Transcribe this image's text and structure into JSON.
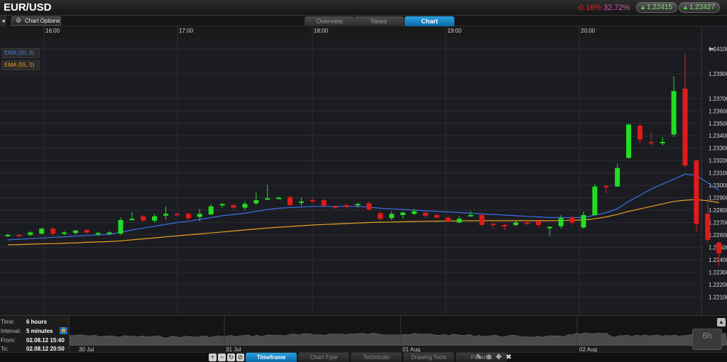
{
  "header": {
    "pair": "EUR/USD",
    "change_pct": "-0.16%",
    "other_pct": "32.72%",
    "bid": "1.22415",
    "ask": "1.22427"
  },
  "toolrow": {
    "chart_options_label": "Chart Options",
    "tabs": [
      {
        "label": "Overview",
        "active": false
      },
      {
        "label": "News",
        "active": false
      },
      {
        "label": "Chart",
        "active": true
      }
    ]
  },
  "indicators": [
    {
      "label": "EMA (20, 0)",
      "color": "#3b6fe8"
    },
    {
      "label": "EMA (55, 0)",
      "color": "#e8a020"
    }
  ],
  "chart_data": {
    "type": "candlestick",
    "time_labels": [
      "16:00",
      "17:00",
      "18:00",
      "19:00",
      "20:00"
    ],
    "y_ticks": [
      "1.24100",
      "1.23900",
      "1.23700",
      "1.23600",
      "1.23500",
      "1.23400",
      "1.23300",
      "1.23200",
      "1.23100",
      "1.23000",
      "1.22900",
      "1.22800",
      "1.22700",
      "1.22600",
      "1.22500",
      "1.22400",
      "1.22300",
      "1.22200",
      "1.22100"
    ],
    "ylim": [
      1.2205,
      1.2414
    ],
    "colors": {
      "up": "#22dd22",
      "down": "#e01b1b",
      "ema20": "#3b6fe8",
      "ema55": "#e8a020",
      "background": "#1b1c21"
    },
    "candles": [
      [
        1.22595,
        1.226,
        1.2261,
        1.22585
      ],
      [
        1.226,
        1.22595,
        1.2261,
        1.22585
      ],
      [
        1.226,
        1.2262,
        1.2263,
        1.2259
      ],
      [
        1.2261,
        1.2265,
        1.2266,
        1.22605
      ],
      [
        1.2265,
        1.2261,
        1.2266,
        1.226
      ],
      [
        1.2261,
        1.2262,
        1.2263,
        1.226
      ],
      [
        1.22615,
        1.22635,
        1.2264,
        1.22605
      ],
      [
        1.2264,
        1.2262,
        1.22645,
        1.2261
      ],
      [
        1.22605,
        1.22615,
        1.22625,
        1.22595
      ],
      [
        1.2261,
        1.2262,
        1.2263,
        1.226
      ],
      [
        1.2261,
        1.2272,
        1.2274,
        1.226
      ],
      [
        1.22725,
        1.2273,
        1.22785,
        1.22725
      ],
      [
        1.2275,
        1.22715,
        1.2276,
        1.22705
      ],
      [
        1.22715,
        1.2275,
        1.2277,
        1.227
      ],
      [
        1.22755,
        1.2277,
        1.2283,
        1.2272
      ],
      [
        1.2277,
        1.22765,
        1.2278,
        1.2275
      ],
      [
        1.2277,
        1.22735,
        1.2278,
        1.2272
      ],
      [
        1.22745,
        1.2277,
        1.2281,
        1.2271
      ],
      [
        1.22765,
        1.2283,
        1.2285,
        1.2276
      ],
      [
        1.2284,
        1.2285,
        1.22855,
        1.2282
      ],
      [
        1.2284,
        1.2282,
        1.22845,
        1.22805
      ],
      [
        1.2282,
        1.2285,
        1.2287,
        1.228
      ],
      [
        1.22855,
        1.2288,
        1.2294,
        1.2284
      ],
      [
        1.2289,
        1.22895,
        1.23005,
        1.22885
      ],
      [
        1.22895,
        1.229,
        1.2291,
        1.2289
      ],
      [
        1.22905,
        1.2284,
        1.22915,
        1.2283
      ],
      [
        1.2286,
        1.2287,
        1.229,
        1.22835
      ],
      [
        1.2288,
        1.22875,
        1.22895,
        1.2286
      ],
      [
        1.2288,
        1.22835,
        1.22895,
        1.22825
      ],
      [
        1.2283,
        1.2282,
        1.2284,
        1.2281
      ],
      [
        1.2284,
        1.2283,
        1.2285,
        1.2281
      ],
      [
        1.2285,
        1.2285,
        1.2286,
        1.2282
      ],
      [
        1.22855,
        1.22805,
        1.2287,
        1.22795
      ],
      [
        1.22775,
        1.2273,
        1.2279,
        1.2272
      ],
      [
        1.22735,
        1.2277,
        1.2279,
        1.2272
      ],
      [
        1.2276,
        1.2278,
        1.2279,
        1.2273
      ],
      [
        1.2277,
        1.2279,
        1.2281,
        1.2276
      ],
      [
        1.2278,
        1.22755,
        1.2279,
        1.2274
      ],
      [
        1.2276,
        1.2274,
        1.2277,
        1.2273
      ],
      [
        1.2274,
        1.2271,
        1.2275,
        1.227
      ],
      [
        1.227,
        1.2273,
        1.2275,
        1.22695
      ],
      [
        1.2276,
        1.2276,
        1.2279,
        1.2275
      ],
      [
        1.2276,
        1.2268,
        1.2277,
        1.2267
      ],
      [
        1.2269,
        1.2268,
        1.227,
        1.2265
      ],
      [
        1.2268,
        1.22675,
        1.2269,
        1.2264
      ],
      [
        1.2268,
        1.227,
        1.2272,
        1.2267
      ],
      [
        1.227,
        1.2269,
        1.2271,
        1.2268
      ],
      [
        1.2271,
        1.2268,
        1.2272,
        1.2266
      ],
      [
        1.2266,
        1.22665,
        1.2267,
        1.2259
      ],
      [
        1.2267,
        1.22735,
        1.2276,
        1.2265
      ],
      [
        1.2274,
        1.227,
        1.2275,
        1.2268
      ],
      [
        1.2266,
        1.2276,
        1.2279,
        1.2265
      ],
      [
        1.2276,
        1.2299,
        1.2301,
        1.2276
      ],
      [
        1.22995,
        1.2299,
        1.23005,
        1.22935
      ],
      [
        1.2299,
        1.2314,
        1.23175,
        1.2299
      ],
      [
        1.2322,
        1.2349,
        1.235,
        1.2322
      ],
      [
        1.2348,
        1.2337,
        1.235,
        1.2334
      ],
      [
        1.2335,
        1.23345,
        1.2343,
        1.2332
      ],
      [
        1.2334,
        1.2335,
        1.2339,
        1.2332
      ],
      [
        1.2341,
        1.2376,
        1.2388,
        1.2339
      ],
      [
        1.2378,
        1.2316,
        1.2406,
        1.2314
      ],
      [
        1.232,
        1.2269,
        1.2321,
        1.2263
      ],
      [
        1.2277,
        1.2256,
        1.229,
        1.2254
      ],
      [
        1.2254,
        1.2245,
        1.22545,
        1.2235
      ]
    ],
    "ema20": [
      1.2256,
      1.22565,
      1.2257,
      1.22575,
      1.2258,
      1.22585,
      1.2259,
      1.22595,
      1.226,
      1.22605,
      1.2262,
      1.2264,
      1.22655,
      1.2267,
      1.22685,
      1.227,
      1.2271,
      1.22725,
      1.2274,
      1.22755,
      1.22765,
      1.22775,
      1.2279,
      1.22805,
      1.22815,
      1.2282,
      1.22825,
      1.2283,
      1.2283,
      1.2283,
      1.2283,
      1.2283,
      1.22825,
      1.22815,
      1.2281,
      1.22805,
      1.228,
      1.22795,
      1.2279,
      1.22785,
      1.2278,
      1.22775,
      1.2277,
      1.22765,
      1.2276,
      1.22755,
      1.2275,
      1.22745,
      1.2274,
      1.2274,
      1.2274,
      1.2274,
      1.2276,
      1.2278,
      1.2281,
      1.2287,
      1.2292,
      1.2297,
      1.2301,
      1.2305,
      1.2309,
      1.2308,
      1.2302,
      1.2296
    ],
    "ema55": [
      1.2252,
      1.22522,
      1.22525,
      1.22528,
      1.2253,
      1.22533,
      1.22536,
      1.2254,
      1.22543,
      1.22546,
      1.22552,
      1.2256,
      1.22568,
      1.22576,
      1.22584,
      1.22592,
      1.226,
      1.22608,
      1.22616,
      1.22624,
      1.22632,
      1.2264,
      1.22648,
      1.22656,
      1.22662,
      1.22668,
      1.22674,
      1.2268,
      1.22684,
      1.22688,
      1.22692,
      1.22696,
      1.227,
      1.22702,
      1.22704,
      1.22706,
      1.22708,
      1.2271,
      1.22711,
      1.22712,
      1.22713,
      1.22714,
      1.22715,
      1.22715,
      1.22715,
      1.22715,
      1.22715,
      1.22715,
      1.22715,
      1.22716,
      1.22718,
      1.2272,
      1.2273,
      1.22745,
      1.22765,
      1.2279,
      1.2281,
      1.2283,
      1.2285,
      1.2287,
      1.2288,
      1.22885,
      1.22875,
      1.2286
    ]
  },
  "info": {
    "time_label": "Time:",
    "time_value": "6 hours",
    "interval_label": "Interval:",
    "interval_value": "5 minutes",
    "from_label": "From:",
    "from_value": "02.08.12 15:40",
    "to_label": "To:",
    "to_value": "02.08.12 20:50"
  },
  "navigator": {
    "date_labels": [
      "30 Jul",
      "31 Jul",
      "01 Aug",
      "02 Aug"
    ],
    "range_label": "6h"
  },
  "toolbar": {
    "tabs": [
      {
        "label": "Timeframe",
        "active": true
      },
      {
        "label": "Chart Type",
        "active": false
      },
      {
        "label": "Technicals",
        "active": false
      },
      {
        "label": "Drawing Tools",
        "active": false
      },
      {
        "label": "Patterns",
        "active": false
      }
    ]
  }
}
